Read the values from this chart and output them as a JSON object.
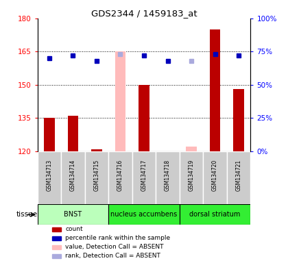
{
  "title": "GDS2344 / 1459183_at",
  "samples": [
    "GSM134713",
    "GSM134714",
    "GSM134715",
    "GSM134716",
    "GSM134717",
    "GSM134718",
    "GSM134719",
    "GSM134720",
    "GSM134721"
  ],
  "count_values": [
    135,
    136,
    121,
    null,
    150,
    120,
    null,
    175,
    148
  ],
  "count_absent": [
    null,
    null,
    null,
    165,
    null,
    null,
    122,
    null,
    null
  ],
  "rank_values": [
    70,
    72,
    68,
    null,
    72,
    68,
    null,
    73,
    72
  ],
  "rank_absent": [
    null,
    null,
    null,
    73,
    null,
    null,
    68,
    null,
    null
  ],
  "ylim_left": [
    120,
    180
  ],
  "ylim_right": [
    0,
    100
  ],
  "yticks_left": [
    120,
    135,
    150,
    165,
    180
  ],
  "yticks_right": [
    0,
    25,
    50,
    75,
    100
  ],
  "ytick_labels_left": [
    "120",
    "135",
    "150",
    "165",
    "180"
  ],
  "ytick_labels_right": [
    "0%",
    "25%",
    "50%",
    "75%",
    "100%"
  ],
  "grid_values": [
    135,
    150,
    165
  ],
  "tissues": [
    {
      "label": "BNST",
      "start": 0,
      "end": 3,
      "color": "#bbffbb"
    },
    {
      "label": "nucleus accumbens",
      "start": 3,
      "end": 6,
      "color": "#33ee33"
    },
    {
      "label": "dorsal striatum",
      "start": 6,
      "end": 9,
      "color": "#33ee33"
    }
  ],
  "bar_color": "#bb0000",
  "bar_absent_color": "#ffbbbb",
  "rank_color": "#0000bb",
  "rank_absent_color": "#aaaadd",
  "legend": [
    {
      "color": "#bb0000",
      "label": "count"
    },
    {
      "color": "#0000bb",
      "label": "percentile rank within the sample"
    },
    {
      "color": "#ffbbbb",
      "label": "value, Detection Call = ABSENT"
    },
    {
      "color": "#aaaadd",
      "label": "rank, Detection Call = ABSENT"
    }
  ],
  "tissue_label": "tissue",
  "bar_width": 0.45
}
